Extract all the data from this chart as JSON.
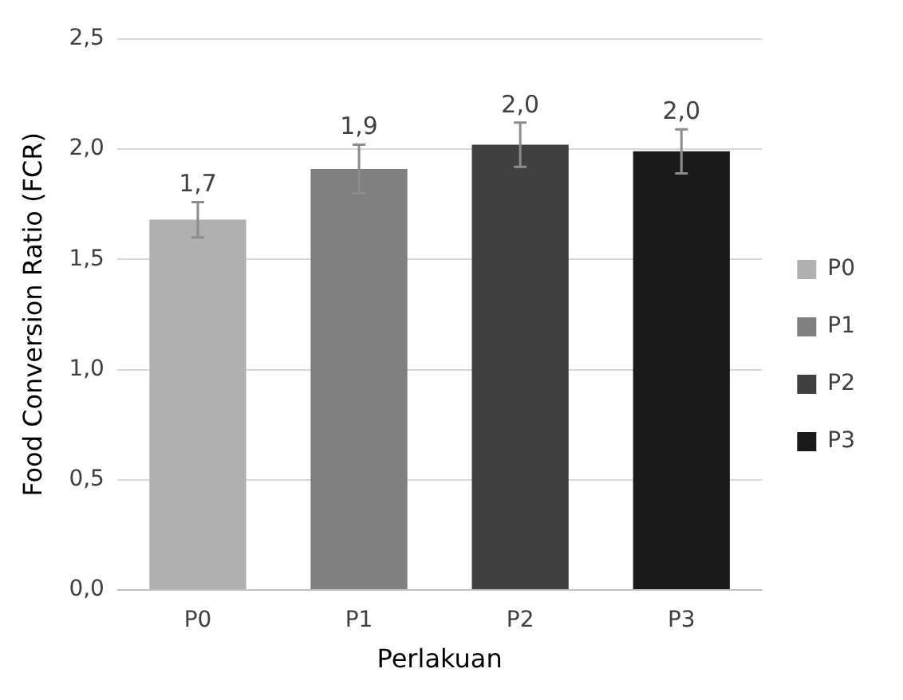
{
  "chart_data": {
    "type": "bar",
    "xlabel": "Perlakuan",
    "ylabel": "Food Conversion Ratio (FCR)",
    "categories": [
      "P0",
      "P1",
      "P2",
      "P3"
    ],
    "series": [
      {
        "name": "P0",
        "color": "#b0b0b0",
        "values": [
          1.68,
          null,
          null,
          null
        ],
        "errors": [
          0.08,
          null,
          null,
          null
        ],
        "value_labels": [
          "1,7",
          null,
          null,
          null
        ]
      },
      {
        "name": "P1",
        "color": "#808080",
        "values": [
          null,
          1.91,
          null,
          null
        ],
        "errors": [
          null,
          0.11,
          null,
          null
        ],
        "value_labels": [
          null,
          "1,9",
          null,
          null
        ]
      },
      {
        "name": "P2",
        "color": "#404040",
        "values": [
          null,
          null,
          2.02,
          null
        ],
        "errors": [
          null,
          null,
          0.1,
          null
        ],
        "value_labels": [
          null,
          null,
          "2,0",
          null
        ]
      },
      {
        "name": "P3",
        "color": "#1a1a1a",
        "values": [
          null,
          null,
          null,
          1.99
        ],
        "errors": [
          null,
          null,
          null,
          0.1
        ],
        "value_labels": [
          null,
          null,
          null,
          "2,0"
        ]
      }
    ],
    "ylim": [
      0,
      2.5
    ],
    "yticks": [
      {
        "value": 0,
        "label": "0,0"
      },
      {
        "value": 0.5,
        "label": "0,5"
      },
      {
        "value": 1,
        "label": "1,0"
      },
      {
        "value": 1.5,
        "label": "1,5"
      },
      {
        "value": 2,
        "label": "2,0"
      },
      {
        "value": 2.5,
        "label": "2,5"
      }
    ],
    "grid": "y",
    "legend": "right"
  }
}
